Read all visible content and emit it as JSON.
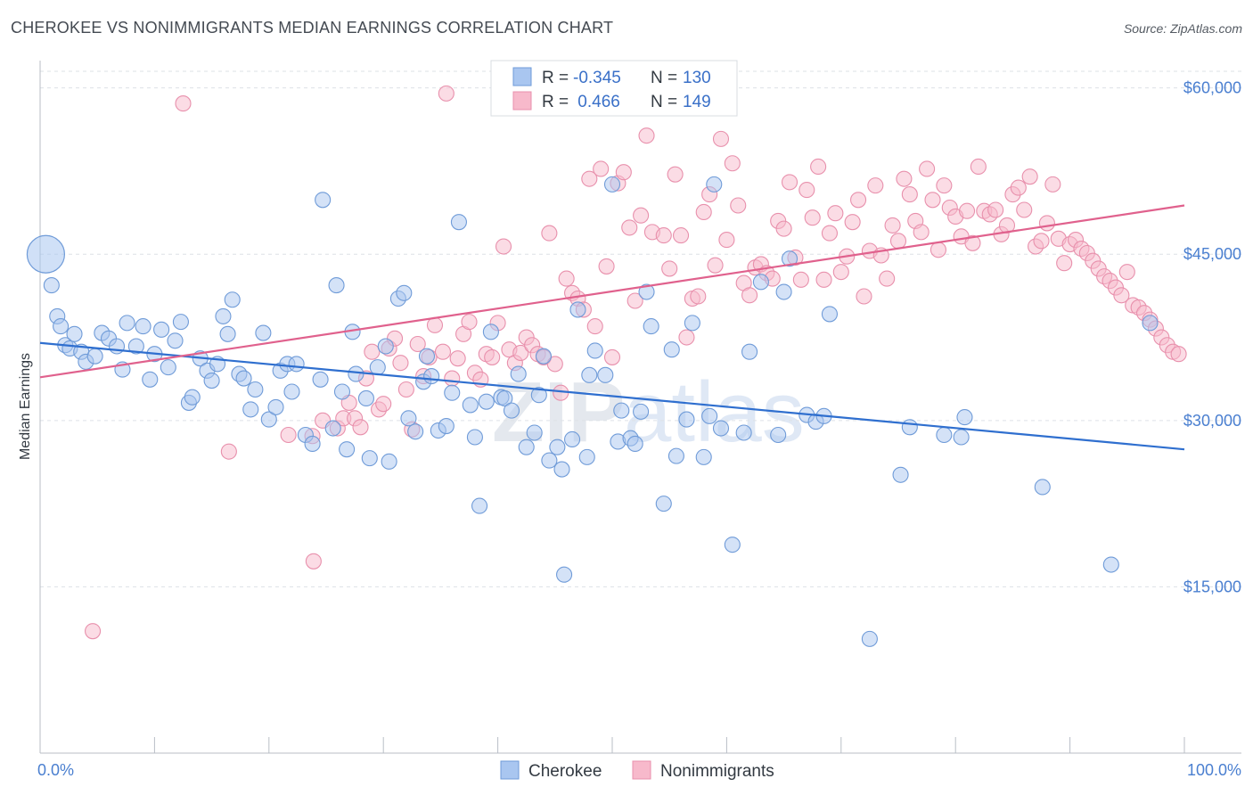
{
  "title": "CHEROKEE VS NONIMMIGRANTS MEDIAN EARNINGS CORRELATION CHART",
  "source": "Source: ZipAtlas.com",
  "watermark": {
    "zip": "ZIP",
    "atlas": "atlas"
  },
  "legend": {
    "rows": [
      {
        "r_label": "R =",
        "r_value": "-0.345",
        "n_label": "N =",
        "n_value": "130",
        "color": "#a9c6f0",
        "stroke": "#6f9bd8"
      },
      {
        "r_label": "R =",
        "r_value": " 0.466",
        "n_label": "N =",
        "n_value": "149",
        "color": "#f7b9cb",
        "stroke": "#e890ac"
      }
    ]
  },
  "chart_data": {
    "type": "scatter",
    "xlabel": "",
    "ylabel": "Median Earnings",
    "x_tick_labels": [
      "0.0%",
      "100.0%"
    ],
    "y_ticks": [
      {
        "value": 15000,
        "label": "$15,000"
      },
      {
        "value": 30000,
        "label": "$30,000"
      },
      {
        "value": 45000,
        "label": "$45,000"
      },
      {
        "value": 60000,
        "label": "$60,000"
      }
    ],
    "xlim": [
      0,
      100
    ],
    "ylim": [
      0,
      61500
    ],
    "series": [
      {
        "name": "Cherokee",
        "color": "#a9c6f0",
        "stroke": "#6f9bd8",
        "line_color": "#2f6fcf",
        "trend": {
          "x0": 0,
          "y0": 37000,
          "x1": 100,
          "y1": 27400
        },
        "big_point": {
          "x": 0.5,
          "y": 45000
        },
        "points": [
          [
            1.0,
            42200
          ],
          [
            1.5,
            39400
          ],
          [
            1.8,
            38500
          ],
          [
            2.2,
            36800
          ],
          [
            2.6,
            36500
          ],
          [
            3.0,
            37800
          ],
          [
            3.6,
            36200
          ],
          [
            4.0,
            35300
          ],
          [
            4.8,
            35800
          ],
          [
            5.4,
            37900
          ],
          [
            6.0,
            37400
          ],
          [
            6.7,
            36700
          ],
          [
            7.2,
            34600
          ],
          [
            7.6,
            38800
          ],
          [
            8.4,
            36700
          ],
          [
            9.0,
            38500
          ],
          [
            9.6,
            33700
          ],
          [
            10.0,
            36000
          ],
          [
            10.6,
            38200
          ],
          [
            11.2,
            34800
          ],
          [
            11.8,
            37200
          ],
          [
            12.3,
            38900
          ],
          [
            13.0,
            31600
          ],
          [
            13.3,
            32100
          ],
          [
            14.0,
            35600
          ],
          [
            14.6,
            34500
          ],
          [
            15.0,
            33600
          ],
          [
            15.5,
            35100
          ],
          [
            16.0,
            39400
          ],
          [
            16.4,
            37800
          ],
          [
            16.8,
            40900
          ],
          [
            17.4,
            34200
          ],
          [
            17.8,
            33800
          ],
          [
            18.4,
            31000
          ],
          [
            18.8,
            32800
          ],
          [
            19.5,
            37900
          ],
          [
            20.0,
            30100
          ],
          [
            20.6,
            31200
          ],
          [
            21.0,
            34500
          ],
          [
            21.6,
            35100
          ],
          [
            22.0,
            32600
          ],
          [
            22.4,
            35100
          ],
          [
            23.2,
            28700
          ],
          [
            23.8,
            27900
          ],
          [
            24.5,
            33700
          ],
          [
            24.7,
            49900
          ],
          [
            25.6,
            29300
          ],
          [
            25.9,
            42200
          ],
          [
            26.4,
            32600
          ],
          [
            26.8,
            27400
          ],
          [
            27.3,
            38000
          ],
          [
            27.6,
            34200
          ],
          [
            28.5,
            32000
          ],
          [
            28.8,
            26600
          ],
          [
            29.5,
            34800
          ],
          [
            30.2,
            36700
          ],
          [
            30.5,
            26300
          ],
          [
            31.3,
            41000
          ],
          [
            31.8,
            41500
          ],
          [
            32.2,
            30200
          ],
          [
            32.8,
            29000
          ],
          [
            33.5,
            33500
          ],
          [
            33.8,
            35800
          ],
          [
            34.2,
            34000
          ],
          [
            34.8,
            29100
          ],
          [
            35.5,
            29500
          ],
          [
            36.0,
            32500
          ],
          [
            36.6,
            47900
          ],
          [
            37.6,
            31400
          ],
          [
            38.0,
            28500
          ],
          [
            38.4,
            22300
          ],
          [
            39.0,
            31700
          ],
          [
            39.4,
            38000
          ],
          [
            40.3,
            32100
          ],
          [
            40.6,
            32000
          ],
          [
            41.2,
            30900
          ],
          [
            41.8,
            34200
          ],
          [
            42.5,
            27600
          ],
          [
            43.2,
            28900
          ],
          [
            43.6,
            32300
          ],
          [
            44.0,
            35800
          ],
          [
            44.5,
            26400
          ],
          [
            45.2,
            27600
          ],
          [
            45.6,
            25600
          ],
          [
            45.8,
            16100
          ],
          [
            46.5,
            28300
          ],
          [
            47.0,
            40000
          ],
          [
            47.8,
            26700
          ],
          [
            48.0,
            34100
          ],
          [
            48.5,
            36300
          ],
          [
            49.4,
            34100
          ],
          [
            50.0,
            51300
          ],
          [
            50.5,
            28100
          ],
          [
            50.8,
            30900
          ],
          [
            51.6,
            28400
          ],
          [
            52.0,
            27900
          ],
          [
            52.5,
            30800
          ],
          [
            53.0,
            41600
          ],
          [
            53.4,
            38500
          ],
          [
            54.5,
            22500
          ],
          [
            55.2,
            36400
          ],
          [
            55.6,
            26800
          ],
          [
            56.5,
            30100
          ],
          [
            57.0,
            38800
          ],
          [
            58.0,
            26700
          ],
          [
            58.5,
            30400
          ],
          [
            58.9,
            51300
          ],
          [
            59.5,
            29300
          ],
          [
            60.5,
            18800
          ],
          [
            61.5,
            28900
          ],
          [
            62.0,
            36200
          ],
          [
            63.0,
            42500
          ],
          [
            64.5,
            28700
          ],
          [
            65.0,
            41600
          ],
          [
            65.5,
            44600
          ],
          [
            67.0,
            30500
          ],
          [
            67.8,
            29900
          ],
          [
            68.5,
            30400
          ],
          [
            69.0,
            39600
          ],
          [
            72.5,
            10300
          ],
          [
            75.2,
            25100
          ],
          [
            76.0,
            29400
          ],
          [
            79.0,
            28700
          ],
          [
            80.5,
            28500
          ],
          [
            80.8,
            30300
          ],
          [
            87.6,
            24000
          ],
          [
            93.6,
            17000
          ],
          [
            97.0,
            38800
          ]
        ]
      },
      {
        "name": "Nonimmigrants",
        "color": "#f7b9cb",
        "stroke": "#e890ac",
        "line_color": "#e0618d",
        "trend": {
          "x0": 0,
          "y0": 33900,
          "x1": 100,
          "y1": 49400
        },
        "points": [
          [
            4.6,
            11000
          ],
          [
            12.5,
            58600
          ],
          [
            16.5,
            27200
          ],
          [
            21.7,
            28700
          ],
          [
            23.8,
            28600
          ],
          [
            23.9,
            17300
          ],
          [
            24.7,
            30000
          ],
          [
            26.0,
            29300
          ],
          [
            26.5,
            30200
          ],
          [
            27.0,
            31600
          ],
          [
            27.5,
            30200
          ],
          [
            28.0,
            29400
          ],
          [
            28.5,
            33800
          ],
          [
            29.0,
            36200
          ],
          [
            29.6,
            31000
          ],
          [
            30.0,
            31500
          ],
          [
            30.5,
            36500
          ],
          [
            31.0,
            37400
          ],
          [
            31.5,
            35200
          ],
          [
            32.0,
            32800
          ],
          [
            32.5,
            29200
          ],
          [
            33.0,
            36900
          ],
          [
            33.5,
            34000
          ],
          [
            34.0,
            35700
          ],
          [
            34.5,
            38600
          ],
          [
            35.2,
            36200
          ],
          [
            35.5,
            59500
          ],
          [
            36.0,
            33800
          ],
          [
            36.5,
            35600
          ],
          [
            37.0,
            37800
          ],
          [
            37.5,
            38900
          ],
          [
            38.0,
            34300
          ],
          [
            38.5,
            33700
          ],
          [
            39.0,
            36000
          ],
          [
            39.5,
            35700
          ],
          [
            40.0,
            38800
          ],
          [
            40.5,
            45700
          ],
          [
            41.0,
            36400
          ],
          [
            41.5,
            35200
          ],
          [
            42.0,
            36100
          ],
          [
            42.5,
            37500
          ],
          [
            43.0,
            36800
          ],
          [
            43.5,
            36000
          ],
          [
            44.0,
            35700
          ],
          [
            44.5,
            46900
          ],
          [
            45.0,
            35100
          ],
          [
            45.5,
            32500
          ],
          [
            46.0,
            42800
          ],
          [
            46.5,
            41500
          ],
          [
            47.0,
            41000
          ],
          [
            47.5,
            40000
          ],
          [
            48.0,
            51800
          ],
          [
            48.5,
            38500
          ],
          [
            49.0,
            52700
          ],
          [
            49.5,
            43900
          ],
          [
            50.0,
            35700
          ],
          [
            50.5,
            51400
          ],
          [
            51.0,
            52400
          ],
          [
            51.5,
            47400
          ],
          [
            52.0,
            40800
          ],
          [
            52.5,
            48500
          ],
          [
            53.0,
            55700
          ],
          [
            53.5,
            47000
          ],
          [
            54.0,
            59000
          ],
          [
            54.5,
            46700
          ],
          [
            55.0,
            43700
          ],
          [
            55.5,
            52200
          ],
          [
            56.0,
            46700
          ],
          [
            56.5,
            37500
          ],
          [
            57.0,
            41000
          ],
          [
            57.5,
            41200
          ],
          [
            58.0,
            48800
          ],
          [
            58.5,
            50400
          ],
          [
            59.0,
            44000
          ],
          [
            59.5,
            55400
          ],
          [
            60.0,
            46300
          ],
          [
            60.5,
            53200
          ],
          [
            61.0,
            49400
          ],
          [
            61.5,
            42400
          ],
          [
            62.0,
            41300
          ],
          [
            62.5,
            43800
          ],
          [
            63.0,
            44100
          ],
          [
            63.5,
            43300
          ],
          [
            64.0,
            42800
          ],
          [
            64.5,
            48000
          ],
          [
            65.0,
            47300
          ],
          [
            65.5,
            51500
          ],
          [
            66.0,
            44700
          ],
          [
            66.5,
            42700
          ],
          [
            67.0,
            50800
          ],
          [
            67.5,
            48300
          ],
          [
            68.0,
            52900
          ],
          [
            68.5,
            42700
          ],
          [
            69.0,
            46900
          ],
          [
            69.5,
            48700
          ],
          [
            70.0,
            43400
          ],
          [
            70.5,
            44800
          ],
          [
            71.0,
            47900
          ],
          [
            71.5,
            49900
          ],
          [
            72.0,
            41200
          ],
          [
            72.5,
            45300
          ],
          [
            73.0,
            51200
          ],
          [
            73.5,
            44900
          ],
          [
            74.0,
            42800
          ],
          [
            74.5,
            47600
          ],
          [
            75.0,
            46200
          ],
          [
            75.5,
            51800
          ],
          [
            76.0,
            50400
          ],
          [
            76.5,
            48000
          ],
          [
            77.0,
            47000
          ],
          [
            77.5,
            52700
          ],
          [
            78.0,
            49900
          ],
          [
            78.5,
            45400
          ],
          [
            79.0,
            51200
          ],
          [
            79.5,
            49200
          ],
          [
            80.0,
            48400
          ],
          [
            80.5,
            46600
          ],
          [
            81.0,
            48900
          ],
          [
            81.5,
            46000
          ],
          [
            82.0,
            52900
          ],
          [
            82.5,
            48900
          ],
          [
            83.0,
            48600
          ],
          [
            83.5,
            49000
          ],
          [
            84.0,
            46800
          ],
          [
            84.5,
            47600
          ],
          [
            85.0,
            50400
          ],
          [
            85.5,
            51000
          ],
          [
            86.0,
            49000
          ],
          [
            86.5,
            52000
          ],
          [
            87.0,
            45700
          ],
          [
            87.5,
            46200
          ],
          [
            88.0,
            47800
          ],
          [
            88.5,
            51300
          ],
          [
            89.0,
            46400
          ],
          [
            89.5,
            44200
          ],
          [
            90.0,
            45900
          ],
          [
            90.5,
            46300
          ],
          [
            91.0,
            45500
          ],
          [
            91.5,
            45100
          ],
          [
            92.0,
            44400
          ],
          [
            92.5,
            43700
          ],
          [
            93.0,
            43000
          ],
          [
            93.5,
            42600
          ],
          [
            94.0,
            42000
          ],
          [
            94.5,
            41300
          ],
          [
            95.0,
            43400
          ],
          [
            95.5,
            40400
          ],
          [
            96.0,
            40200
          ],
          [
            96.5,
            39700
          ],
          [
            97.0,
            39100
          ],
          [
            97.5,
            38300
          ],
          [
            98.0,
            37500
          ],
          [
            98.5,
            36800
          ],
          [
            99.0,
            36200
          ],
          [
            99.5,
            36000
          ]
        ]
      }
    ]
  },
  "bottom_legend": [
    {
      "label": "Cherokee",
      "color": "#a9c6f0",
      "stroke": "#6f9bd8"
    },
    {
      "label": "Nonimmigrants",
      "color": "#f7b9cb",
      "stroke": "#e890ac"
    }
  ]
}
